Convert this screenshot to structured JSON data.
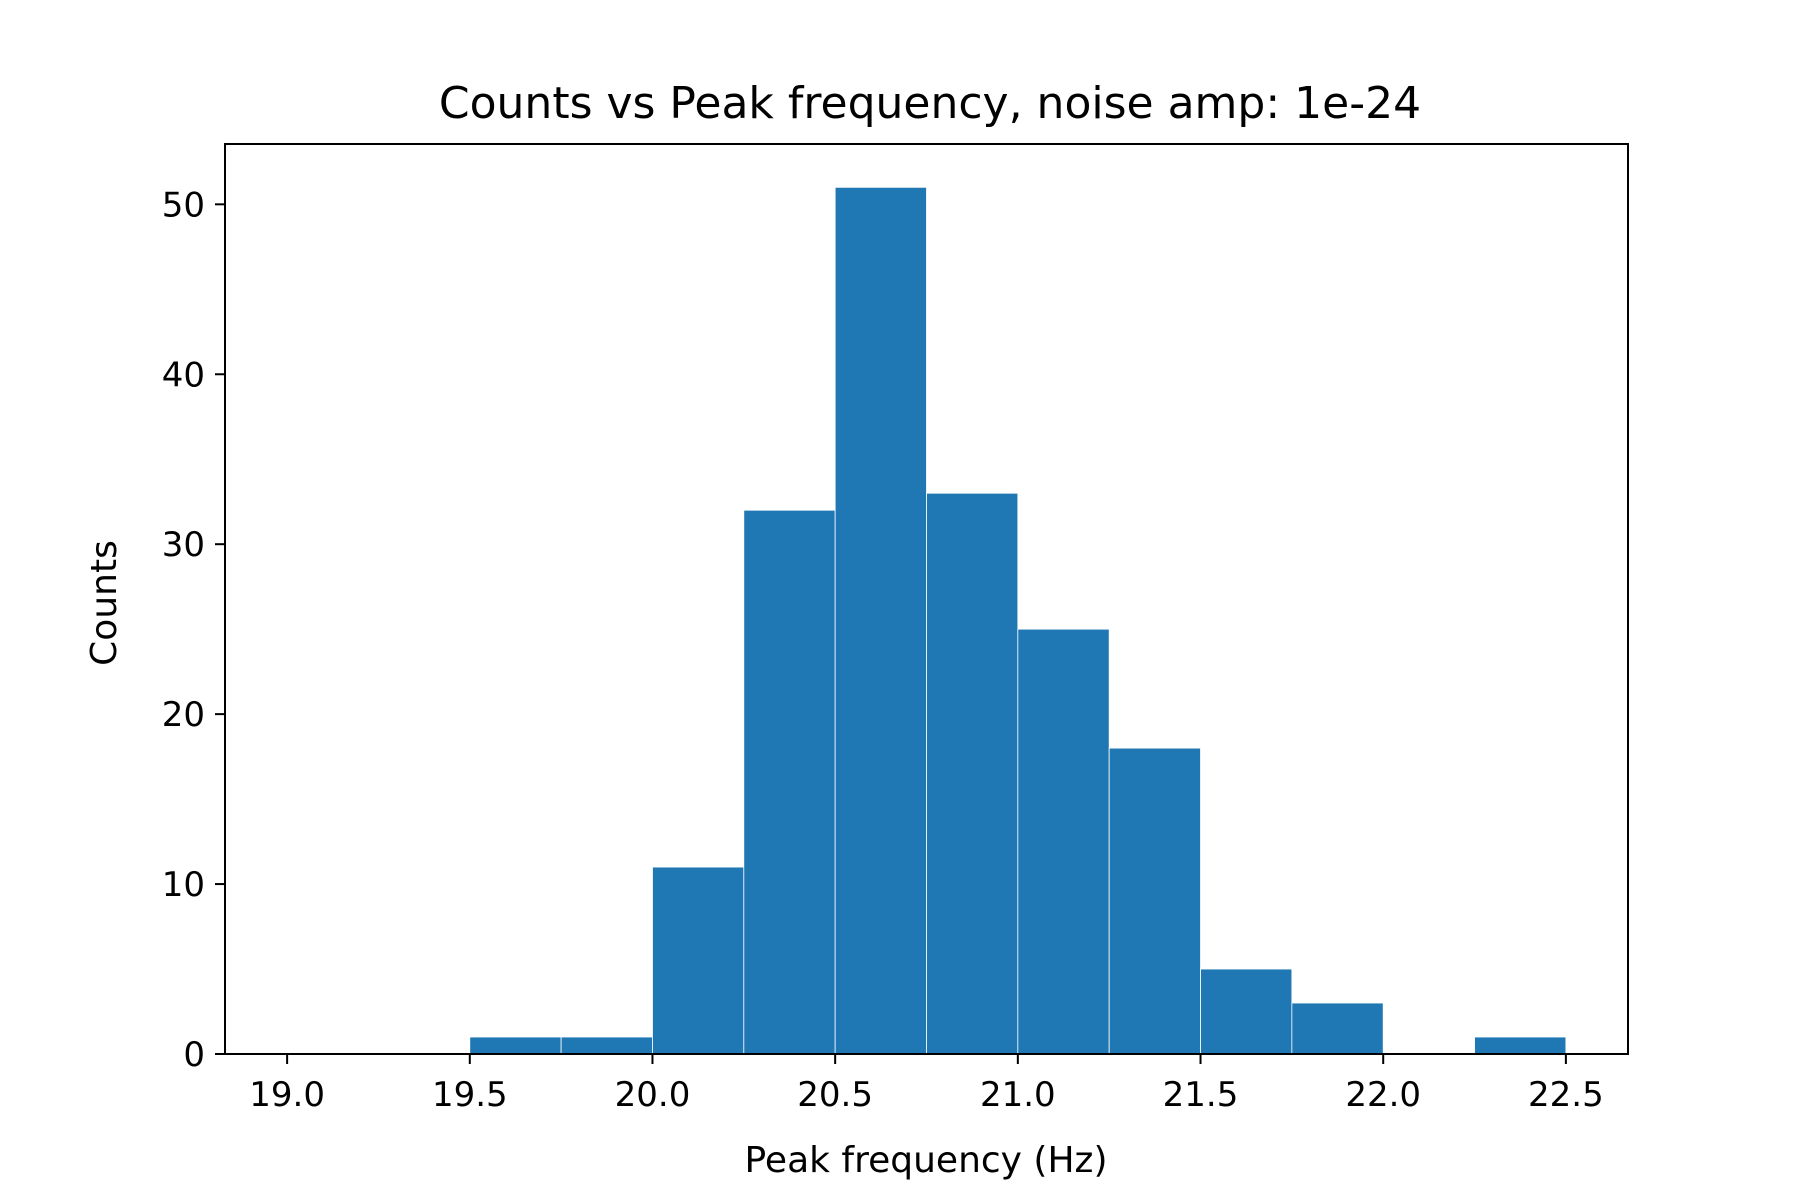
{
  "chart_data": {
    "type": "bar",
    "title": "Counts vs Peak frequency, noise amp: 1e-24",
    "xlabel": "Peak frequency (Hz)",
    "ylabel": "Counts",
    "xlim": [
      18.83,
      22.67
    ],
    "ylim": [
      0,
      53.55
    ],
    "x_ticks": [
      19.0,
      19.5,
      20.0,
      20.5,
      21.0,
      21.5,
      22.0,
      22.5
    ],
    "x_tick_labels": [
      "19.0",
      "19.5",
      "20.0",
      "20.5",
      "21.0",
      "21.5",
      "22.0",
      "22.5"
    ],
    "y_ticks": [
      0,
      10,
      20,
      30,
      40,
      50
    ],
    "y_tick_labels": [
      "0",
      "10",
      "20",
      "30",
      "40",
      "50"
    ],
    "bin_edges": [
      19.0,
      19.25,
      19.5,
      19.75,
      20.0,
      20.25,
      20.5,
      20.75,
      21.0,
      21.25,
      21.5,
      21.75,
      22.0,
      22.25,
      22.5
    ],
    "values": [
      0,
      0,
      1,
      1,
      11,
      32,
      51,
      33,
      25,
      18,
      5,
      3,
      0,
      1
    ],
    "bar_color": "#1f77b4",
    "grid": false,
    "legend": "none"
  }
}
